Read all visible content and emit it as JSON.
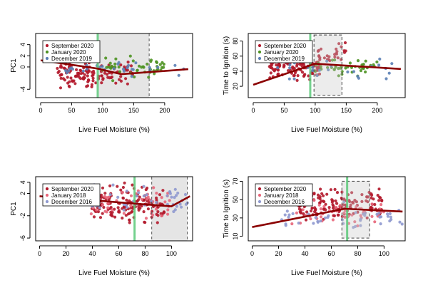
{
  "chart_data": [
    {
      "type": "scatter",
      "xlabel": "Live Fuel Moisture (%)",
      "ylabel": "PC1",
      "xlim": [
        -8,
        245
      ],
      "ylim": [
        -5.5,
        6
      ],
      "xticks": [
        0,
        50,
        100,
        150,
        200
      ],
      "yticks": [
        -4,
        0,
        2,
        4
      ],
      "legend": [
        "September 2020",
        "January 2020",
        "December 2019"
      ],
      "legend_colors": [
        "#b2182b",
        "#4d9221",
        "#5b7fb5"
      ],
      "green_line_x": 92,
      "shade_range": [
        92,
        175
      ],
      "threshold_dashed_x": 175,
      "fit_line": [
        [
          0,
          1.2
        ],
        [
          92,
          -0.3
        ],
        [
          130,
          -1.3
        ],
        [
          238,
          -0.4
        ]
      ],
      "point_clouds": [
        {
          "series": 0,
          "n": 95,
          "x_range": [
            25,
            100
          ],
          "y_range": [
            -4.5,
            1.5
          ]
        },
        {
          "series": 0,
          "n": 35,
          "x_range": [
            100,
            150
          ],
          "y_range": [
            -4,
            2
          ]
        },
        {
          "series": 1,
          "n": 45,
          "x_range": [
            90,
            200
          ],
          "y_range": [
            -3,
            2.5
          ]
        },
        {
          "series": 2,
          "n": 30,
          "x_range": [
            40,
            240
          ],
          "y_range": [
            -2,
            2
          ]
        }
      ]
    },
    {
      "type": "scatter",
      "xlabel": "Live Fuel Moisture (%)",
      "ylabel": "Time to Ignition (s)",
      "xlim": [
        -8,
        245
      ],
      "ylim": [
        5,
        90
      ],
      "xticks": [
        0,
        50,
        100,
        150,
        200
      ],
      "yticks": [
        20,
        40,
        60,
        80
      ],
      "legend": [
        "September 2020",
        "January 2020",
        "December 2019"
      ],
      "legend_colors": [
        "#b2182b",
        "#4d9221",
        "#5b7fb5"
      ],
      "green_line_x": 92,
      "dashed_box": {
        "x": [
          98,
          143
        ],
        "y": [
          8,
          88
        ]
      },
      "fit_line": [
        [
          0,
          22
        ],
        [
          100,
          50
        ],
        [
          238,
          43
        ]
      ],
      "point_clouds": [
        {
          "series": 0,
          "n": 110,
          "x_range": [
            25,
            110
          ],
          "y_range": [
            25,
            65
          ]
        },
        {
          "series": 0,
          "n": 25,
          "x_range": [
            100,
            150
          ],
          "y_range": [
            45,
            85
          ]
        },
        {
          "series": 1,
          "n": 40,
          "x_range": [
            90,
            200
          ],
          "y_range": [
            30,
            60
          ]
        },
        {
          "series": 2,
          "n": 25,
          "x_range": [
            30,
            240
          ],
          "y_range": [
            25,
            60
          ]
        }
      ]
    },
    {
      "type": "scatter",
      "xlabel": "Live Fuel Moisture (%)",
      "ylabel": "PC1",
      "xlim": [
        -3,
        116
      ],
      "ylim": [
        -6.5,
        5
      ],
      "xticks": [
        0,
        20,
        40,
        60,
        80,
        100
      ],
      "yticks": [
        -6,
        -2,
        2,
        4
      ],
      "legend": [
        "September 2020",
        "January 2018",
        "December 2016"
      ],
      "legend_colors": [
        "#b2182b",
        "#e8667a",
        "#8f99cf"
      ],
      "green_line_x": 72,
      "shade_range": [
        85,
        112
      ],
      "threshold_dashed_x": 85,
      "threshold_dashed_x2": 112,
      "fit_line": [
        [
          0,
          1.5
        ],
        [
          30,
          1.0
        ],
        [
          70,
          0.2
        ],
        [
          100,
          -0.3
        ],
        [
          114,
          1.5
        ]
      ],
      "point_clouds": [
        {
          "series": 0,
          "n": 160,
          "x_range": [
            38,
            95
          ],
          "y_range": [
            -4.5,
            4.5
          ]
        },
        {
          "series": 1,
          "n": 50,
          "x_range": [
            35,
            100
          ],
          "y_range": [
            -4,
            4
          ]
        },
        {
          "series": 2,
          "n": 50,
          "x_range": [
            35,
            114
          ],
          "y_range": [
            -3,
            4.5
          ]
        }
      ]
    },
    {
      "type": "scatter",
      "xlabel": "Live Fuel Moisture (%)",
      "ylabel": "Time to Ignition (s)",
      "xlim": [
        -3,
        116
      ],
      "ylim": [
        5,
        75
      ],
      "xticks": [
        0,
        20,
        40,
        60,
        80,
        100
      ],
      "yticks": [
        10,
        30,
        50,
        70
      ],
      "legend": [
        "September 2020",
        "January 2018",
        "December 2016"
      ],
      "legend_colors": [
        "#b2182b",
        "#e8667a",
        "#8f99cf"
      ],
      "green_line_x": 72,
      "dashed_box": {
        "x": [
          68,
          89
        ],
        "y": [
          8,
          70
        ]
      },
      "fit_line": [
        [
          0,
          20
        ],
        [
          70,
          40
        ],
        [
          114,
          37
        ]
      ],
      "point_clouds": [
        {
          "series": 0,
          "n": 150,
          "x_range": [
            35,
            100
          ],
          "y_range": [
            18,
            70
          ]
        },
        {
          "series": 1,
          "n": 50,
          "x_range": [
            30,
            100
          ],
          "y_range": [
            15,
            55
          ]
        },
        {
          "series": 2,
          "n": 45,
          "x_range": [
            20,
            114
          ],
          "y_range": [
            10,
            50
          ]
        }
      ]
    }
  ]
}
